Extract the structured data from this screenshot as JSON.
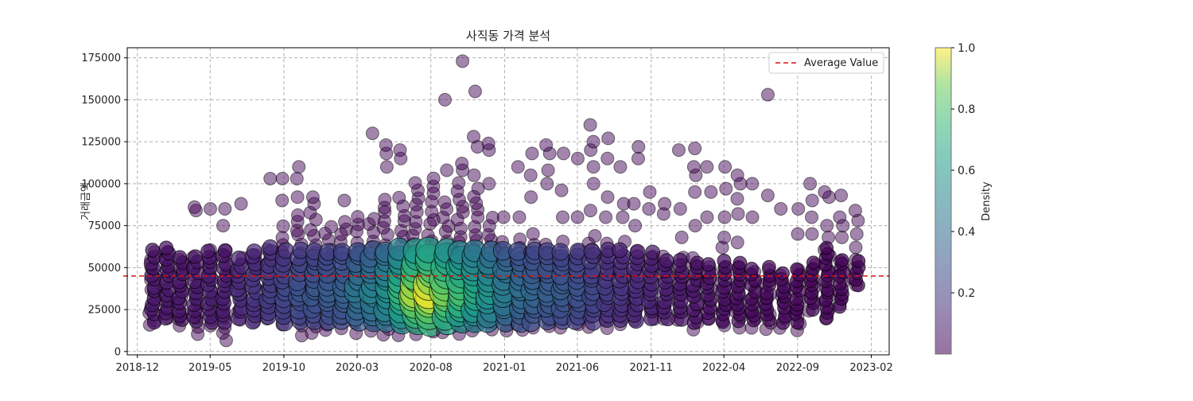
{
  "chart_data": {
    "type": "scatter",
    "title": "사직동 가격 분석",
    "xlabel": "",
    "ylabel": "거래금액",
    "x_ticks": [
      "2018-12",
      "2019-05",
      "2019-10",
      "2020-03",
      "2020-08",
      "2021-01",
      "2021-06",
      "2021-11",
      "2022-04",
      "2022-09",
      "2023-02"
    ],
    "xlim": [
      "2018-11-10",
      "2023-03-10"
    ],
    "y_ticks": [
      0,
      25000,
      50000,
      75000,
      100000,
      125000,
      150000,
      175000
    ],
    "ylim": [
      -2000,
      181000
    ],
    "grid": true,
    "average": {
      "label": "Average Value",
      "value": 45000,
      "color": "#dd1111"
    },
    "legend_position": "upper right",
    "colorbar": {
      "label": "Density",
      "range": [
        0.0,
        1.0
      ],
      "ticks": [
        "0.2",
        "0.4",
        "0.6",
        "0.8",
        "1.0"
      ],
      "colormap": "viridis"
    },
    "columns": [
      {
        "date": "2019-01",
        "density": 0.08,
        "min": 15000,
        "max": 62000,
        "outliers": []
      },
      {
        "date": "2019-02",
        "density": 0.08,
        "min": 20000,
        "max": 62000,
        "outliers": []
      },
      {
        "date": "2019-03",
        "density": 0.07,
        "min": 15000,
        "max": 58000,
        "outliers": []
      },
      {
        "date": "2019-04",
        "density": 0.08,
        "min": 10000,
        "max": 58000,
        "outliers": [
          84000,
          86000
        ]
      },
      {
        "date": "2019-05",
        "density": 0.1,
        "min": 15000,
        "max": 60000,
        "outliers": [
          85000
        ]
      },
      {
        "date": "2019-06",
        "density": 0.1,
        "min": 6000,
        "max": 62000,
        "outliers": [
          75000,
          85000
        ]
      },
      {
        "date": "2019-07",
        "density": 0.15,
        "min": 20000,
        "max": 58000,
        "outliers": [
          88000
        ]
      },
      {
        "date": "2019-08",
        "density": 0.18,
        "min": 18000,
        "max": 60000,
        "outliers": []
      },
      {
        "date": "2019-09",
        "density": 0.22,
        "min": 20000,
        "max": 62000,
        "outliers": [
          103000
        ]
      },
      {
        "date": "2019-10",
        "density": 0.25,
        "min": 15000,
        "max": 75000,
        "outliers": [
          90000,
          103000
        ]
      },
      {
        "date": "2019-11",
        "density": 0.3,
        "min": 10000,
        "max": 85000,
        "outliers": [
          92000,
          103000,
          110000
        ]
      },
      {
        "date": "2019-12",
        "density": 0.32,
        "min": 10000,
        "max": 82000,
        "outliers": [
          88000,
          92000
        ]
      },
      {
        "date": "2020-01",
        "density": 0.34,
        "min": 12000,
        "max": 78000,
        "outliers": []
      },
      {
        "date": "2020-02",
        "density": 0.36,
        "min": 15000,
        "max": 80000,
        "outliers": [
          90000
        ]
      },
      {
        "date": "2020-03",
        "density": 0.45,
        "min": 12000,
        "max": 80000,
        "outliers": []
      },
      {
        "date": "2020-04",
        "density": 0.5,
        "min": 12000,
        "max": 82000,
        "outliers": [
          130000
        ]
      },
      {
        "date": "2020-05",
        "density": 0.58,
        "min": 10000,
        "max": 95000,
        "outliers": [
          110000,
          118000,
          123000
        ]
      },
      {
        "date": "2020-06",
        "density": 0.75,
        "min": 10000,
        "max": 95000,
        "outliers": [
          115000,
          120000
        ]
      },
      {
        "date": "2020-07",
        "density": 0.95,
        "min": 10000,
        "max": 100000,
        "outliers": []
      },
      {
        "date": "2020-08",
        "density": 1.0,
        "min": 12000,
        "max": 102000,
        "outliers": []
      },
      {
        "date": "2020-09",
        "density": 0.9,
        "min": 12000,
        "max": 90000,
        "outliers": [
          108000,
          150000
        ]
      },
      {
        "date": "2020-10",
        "density": 0.8,
        "min": 10000,
        "max": 100000,
        "outliers": [
          108000,
          112000,
          173000
        ]
      },
      {
        "date": "2020-11",
        "density": 0.7,
        "min": 12000,
        "max": 100000,
        "outliers": [
          105000,
          122000,
          128000,
          155000
        ]
      },
      {
        "date": "2020-12",
        "density": 0.6,
        "min": 12000,
        "max": 80000,
        "outliers": [
          100000,
          120000,
          124000
        ]
      },
      {
        "date": "2021-01",
        "density": 0.48,
        "min": 12000,
        "max": 70000,
        "outliers": [
          80000
        ]
      },
      {
        "date": "2021-02",
        "density": 0.42,
        "min": 12000,
        "max": 68000,
        "outliers": [
          80000,
          110000
        ]
      },
      {
        "date": "2021-03",
        "density": 0.38,
        "min": 15000,
        "max": 70000,
        "outliers": [
          92000,
          105000,
          118000
        ]
      },
      {
        "date": "2021-04",
        "density": 0.35,
        "min": 15000,
        "max": 68000,
        "outliers": [
          100000,
          108000,
          118000,
          123000
        ]
      },
      {
        "date": "2021-05",
        "density": 0.33,
        "min": 15000,
        "max": 65000,
        "outliers": [
          80000,
          96000,
          118000
        ]
      },
      {
        "date": "2021-06",
        "density": 0.3,
        "min": 15000,
        "max": 62000,
        "outliers": [
          80000,
          115000
        ]
      },
      {
        "date": "2021-07",
        "density": 0.25,
        "min": 15000,
        "max": 70000,
        "outliers": [
          84000,
          100000,
          110000,
          120000,
          125000,
          135000
        ]
      },
      {
        "date": "2021-08",
        "density": 0.2,
        "min": 15000,
        "max": 65000,
        "outliers": [
          80000,
          92000,
          115000,
          127000
        ]
      },
      {
        "date": "2021-09",
        "density": 0.18,
        "min": 15000,
        "max": 65000,
        "outliers": [
          80000,
          88000,
          110000
        ]
      },
      {
        "date": "2021-10",
        "density": 0.15,
        "min": 18000,
        "max": 62000,
        "outliers": [
          75000,
          88000,
          115000,
          122000
        ]
      },
      {
        "date": "2021-11",
        "density": 0.12,
        "min": 20000,
        "max": 60000,
        "outliers": [
          95000,
          85000
        ]
      },
      {
        "date": "2021-12",
        "density": 0.1,
        "min": 20000,
        "max": 58000,
        "outliers": [
          82000,
          88000
        ]
      },
      {
        "date": "2022-01",
        "density": 0.08,
        "min": 20000,
        "max": 58000,
        "outliers": [
          68000,
          85000,
          120000
        ]
      },
      {
        "date": "2022-02",
        "density": 0.07,
        "min": 14000,
        "max": 55000,
        "outliers": [
          75000,
          95000,
          105000,
          110000,
          121000
        ]
      },
      {
        "date": "2022-03",
        "density": 0.06,
        "min": 20000,
        "max": 52000,
        "outliers": [
          80000,
          95000,
          110000
        ]
      },
      {
        "date": "2022-04",
        "density": 0.05,
        "min": 15000,
        "max": 55000,
        "outliers": [
          62000,
          68000,
          80000,
          97000,
          110000
        ]
      },
      {
        "date": "2022-05",
        "density": 0.04,
        "min": 15000,
        "max": 55000,
        "outliers": [
          65000,
          82000,
          91000,
          100000,
          105000
        ]
      },
      {
        "date": "2022-06",
        "density": 0.03,
        "min": 15000,
        "max": 50000,
        "outliers": [
          80000,
          100000
        ]
      },
      {
        "date": "2022-07",
        "density": 0.03,
        "min": 13000,
        "max": 50000,
        "outliers": [
          93000,
          153000
        ]
      },
      {
        "date": "2022-08",
        "density": 0.03,
        "min": 15000,
        "max": 47000,
        "outliers": [
          85000
        ]
      },
      {
        "date": "2022-09",
        "density": 0.02,
        "min": 13000,
        "max": 50000,
        "outliers": [
          70000,
          85000
        ]
      },
      {
        "date": "2022-10",
        "density": 0.02,
        "min": 25000,
        "max": 55000,
        "outliers": [
          70000,
          80000,
          90000,
          100000
        ]
      },
      {
        "date": "2022-11",
        "density": 0.02,
        "min": 20000,
        "max": 62000,
        "outliers": [
          68000,
          75000,
          92000,
          95000
        ]
      },
      {
        "date": "2022-12",
        "density": 0.02,
        "min": 27000,
        "max": 58000,
        "outliers": [
          68000,
          75000,
          80000,
          93000
        ]
      },
      {
        "date": "2023-01",
        "density": 0.02,
        "min": 40000,
        "max": 55000,
        "outliers": [
          62000,
          70000,
          78000,
          84000
        ]
      }
    ]
  }
}
